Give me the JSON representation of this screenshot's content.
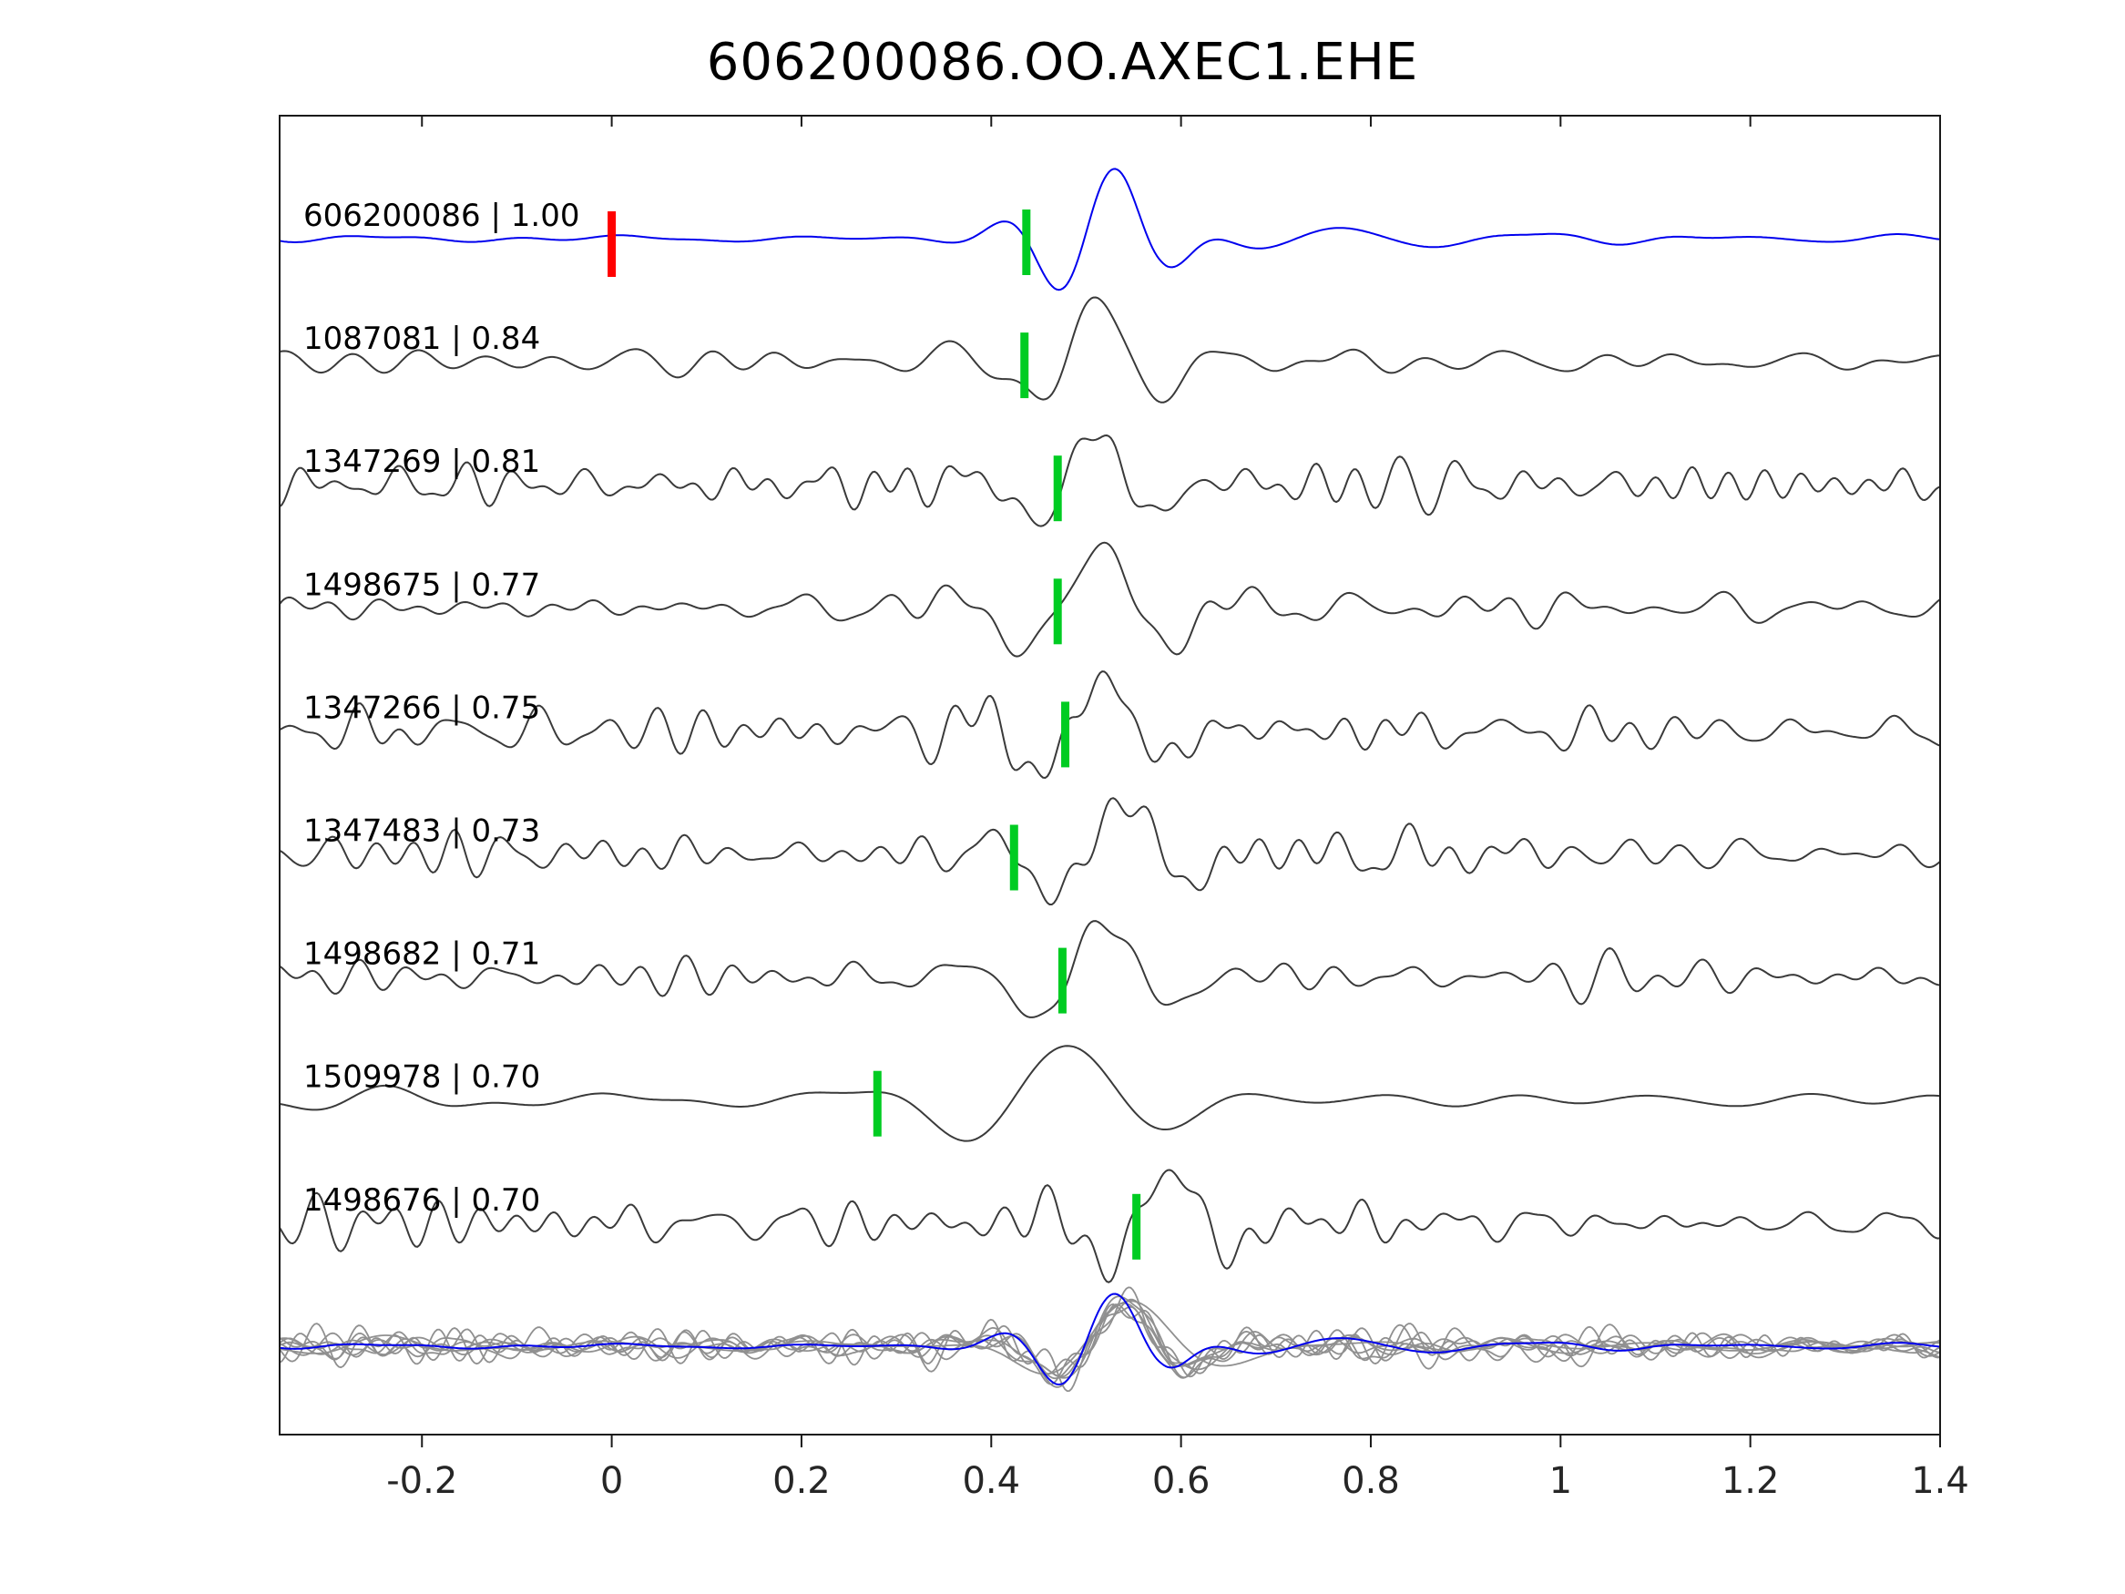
{
  "title": "606200086.OO.AXEC1.EHE",
  "chart_data": {
    "type": "line",
    "title": "606200086.OO.AXEC1.EHE",
    "xlabel": "",
    "ylabel": "",
    "xlim": [
      -0.35,
      1.4
    ],
    "grid": false,
    "legend": null,
    "x_ticks": [
      {
        "value": -0.2,
        "label": "-0.2"
      },
      {
        "value": 0,
        "label": "0"
      },
      {
        "value": 0.2,
        "label": "0.2"
      },
      {
        "value": 0.4,
        "label": "0.4"
      },
      {
        "value": 0.6,
        "label": "0.6"
      },
      {
        "value": 0.8,
        "label": "0.8"
      },
      {
        "value": 1,
        "label": "1"
      },
      {
        "value": 1.2,
        "label": "1.2"
      },
      {
        "value": 1.4,
        "label": "1.4"
      }
    ],
    "colors": {
      "template_trace": "#0000ee",
      "detection_trace": "#3a3a3a",
      "overlay_trace": "#909090",
      "pick_marker": "#00cc22",
      "origin_marker": "#ff0000",
      "axis": "#1a1a1a",
      "tick_label": "#262626",
      "trace_label": "#000000"
    },
    "traces": [
      {
        "id": "606200086",
        "correlation": 1.0,
        "label": "606200086 | 1.00",
        "role": "template",
        "pick_time": 0.437,
        "origin_marker_time": 0.0,
        "synth": {
          "seed": 101,
          "noise_amp": 0.06,
          "noise_freq": [
            3,
            12
          ],
          "arrival": {
            "t0": 0.52,
            "amp": 1.0,
            "freq": 8,
            "sigma": 0.065
          },
          "coda": {
            "amp": 0.3,
            "tau": 0.33,
            "freq": 4.8
          }
        }
      },
      {
        "id": "1087081",
        "correlation": 0.84,
        "label": "1087081 | 0.84",
        "role": "detection",
        "pick_time": 0.435,
        "synth": {
          "seed": 202,
          "noise_amp": 0.24,
          "noise_freq": [
            5,
            18
          ],
          "arrival": {
            "t0": 0.5,
            "amp": 0.85,
            "freq": 6.5,
            "sigma": 0.075
          }
        }
      },
      {
        "id": "1347269",
        "correlation": 0.81,
        "label": "1347269 | 0.81",
        "role": "detection",
        "pick_time": 0.47,
        "synth": {
          "seed": 303,
          "noise_amp": 0.46,
          "noise_freq": [
            8,
            28
          ],
          "arrival": {
            "t0": 0.5,
            "amp": 0.8,
            "freq": 7,
            "sigma": 0.07
          }
        }
      },
      {
        "id": "1498675",
        "correlation": 0.77,
        "label": "1498675 | 0.77",
        "role": "detection",
        "pick_time": 0.47,
        "synth": {
          "seed": 404,
          "noise_amp": 0.32,
          "noise_freq": [
            6,
            22
          ],
          "arrival": {
            "t0": 0.5,
            "amp": 0.92,
            "freq": 6,
            "sigma": 0.08
          }
        }
      },
      {
        "id": "1347266",
        "correlation": 0.75,
        "label": "1347266 | 0.75",
        "role": "detection",
        "pick_time": 0.478,
        "synth": {
          "seed": 505,
          "noise_amp": 0.5,
          "noise_freq": [
            8,
            28
          ],
          "arrival": {
            "t0": 0.51,
            "amp": 0.85,
            "freq": 7,
            "sigma": 0.07
          }
        }
      },
      {
        "id": "1347483",
        "correlation": 0.73,
        "label": "1347483 | 0.73",
        "role": "detection",
        "pick_time": 0.424,
        "synth": {
          "seed": 606,
          "noise_amp": 0.46,
          "noise_freq": [
            8,
            26
          ],
          "arrival": {
            "t0": 0.53,
            "amp": 0.9,
            "freq": 6.5,
            "sigma": 0.07
          }
        }
      },
      {
        "id": "1498682",
        "correlation": 0.71,
        "label": "1498682 | 0.71",
        "role": "detection",
        "pick_time": 0.475,
        "synth": {
          "seed": 707,
          "noise_amp": 0.44,
          "noise_freq": [
            7,
            24
          ],
          "arrival": {
            "t0": 0.51,
            "amp": 0.95,
            "freq": 6.5,
            "sigma": 0.07
          }
        }
      },
      {
        "id": "1509978",
        "correlation": 0.7,
        "label": "1509978 | 0.70",
        "role": "detection",
        "pick_time": 0.28,
        "synth": {
          "seed": 808,
          "noise_amp": 0.22,
          "noise_freq": [
            3,
            10
          ],
          "arrival": {
            "t0": 0.47,
            "amp": 0.95,
            "freq": 4.5,
            "sigma": 0.1
          }
        }
      },
      {
        "id": "1498676",
        "correlation": 0.7,
        "label": "1498676 | 0.70",
        "role": "detection",
        "pick_time": 0.553,
        "synth": {
          "seed": 909,
          "noise_amp": 0.46,
          "noise_freq": [
            8,
            26
          ],
          "arrival": {
            "t0": 0.58,
            "amp": 0.9,
            "freq": 7,
            "sigma": 0.07
          }
        }
      }
    ],
    "overlay": {
      "description": "all detections aligned and overlaid in gray with template in blue",
      "align_t0": 0.53,
      "amp_scale": 0.75
    }
  }
}
